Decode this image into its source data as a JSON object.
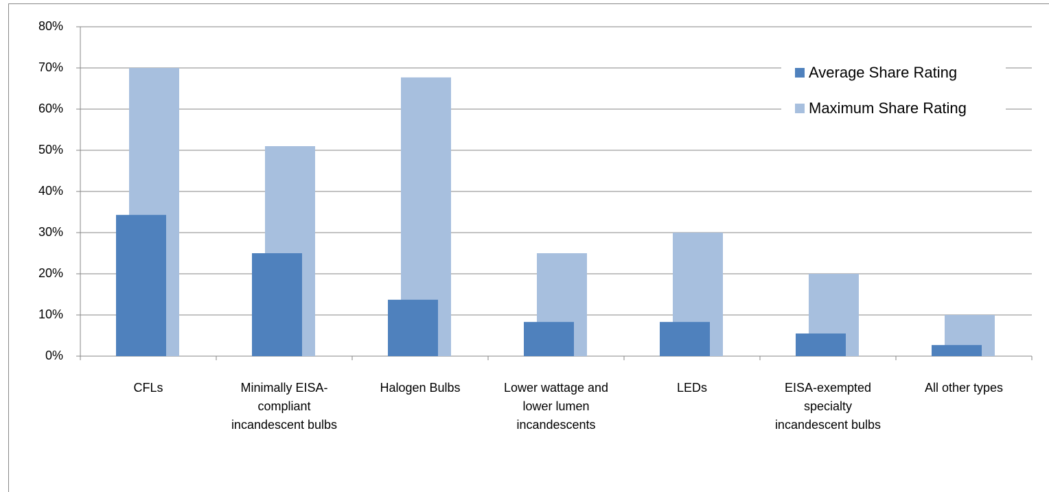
{
  "chart_data": {
    "type": "bar",
    "categories": [
      "CFLs",
      "Minimally EISA-compliant incandescent bulbs",
      "Halogen Bulbs",
      "Lower wattage and lower lumen incandescents",
      "LEDs",
      "EISA-exempted specialty incandescent bulbs",
      "All other types"
    ],
    "series": [
      {
        "name": "Average Share Rating",
        "color": "#4f81bd",
        "values": [
          34.3,
          25,
          13.7,
          8.3,
          8.3,
          5.5,
          2.7
        ]
      },
      {
        "name": "Maximum Share Rating",
        "color": "#a7bfde",
        "values": [
          70,
          51,
          67.7,
          25,
          30,
          20,
          10
        ]
      }
    ],
    "ylim": [
      0,
      80
    ],
    "yticks": [
      {
        "value": 0,
        "label": "0%"
      },
      {
        "value": 10,
        "label": "10%"
      },
      {
        "value": 20,
        "label": "20%"
      },
      {
        "value": 30,
        "label": "30%"
      },
      {
        "value": 40,
        "label": "40%"
      },
      {
        "value": 50,
        "label": "50%"
      },
      {
        "value": 60,
        "label": "60%"
      },
      {
        "value": 70,
        "label": "70%"
      },
      {
        "value": 80,
        "label": "80%"
      }
    ],
    "grid": true,
    "legend": "top-right"
  }
}
